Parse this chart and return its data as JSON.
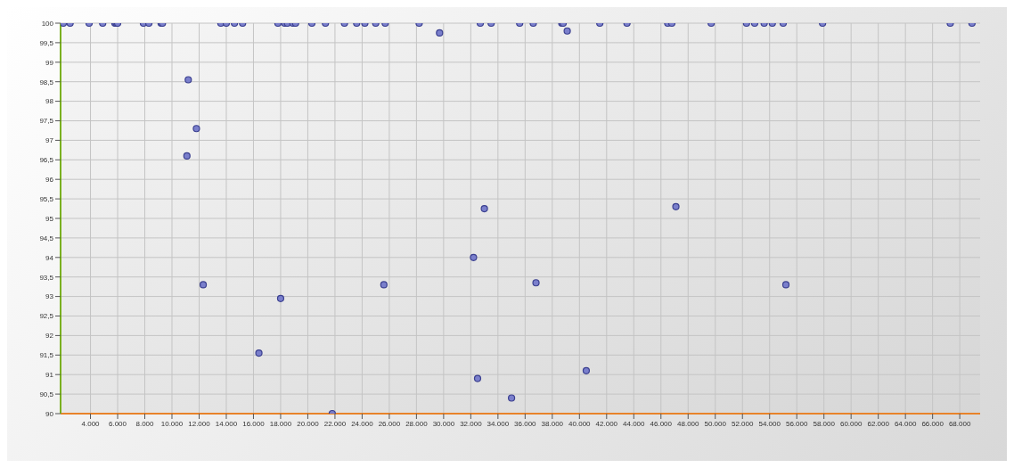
{
  "chart_data": {
    "type": "scatter",
    "color": "#7a7fcc",
    "marker": "circle",
    "grid": true,
    "x": [
      2000,
      2500,
      3900,
      4900,
      5800,
      5900,
      6000,
      7900,
      8300,
      9200,
      9300,
      13600,
      14000,
      14600,
      15200,
      17800,
      18300,
      18500,
      18900,
      19100,
      20300,
      21300,
      22700,
      23600,
      24200,
      25000,
      25700,
      28200,
      32700,
      33500,
      35600,
      36600,
      38700,
      38800,
      41500,
      43500,
      46500,
      46800,
      49700,
      52300,
      52900,
      53600,
      54200,
      55000,
      57900,
      67300,
      68900,
      29700,
      39100,
      11200,
      11800,
      11100,
      12300,
      18000,
      16400,
      21800,
      25600,
      32200,
      32500,
      33000,
      35000,
      36800,
      40500,
      47100,
      55200
    ],
    "values": [
      100,
      100,
      100,
      100,
      100,
      100,
      100,
      100,
      100,
      100,
      100,
      100,
      100,
      100,
      100,
      100,
      100,
      100,
      100,
      100,
      100,
      100,
      100,
      100,
      100,
      100,
      100,
      100,
      100,
      100,
      100,
      100,
      100,
      100,
      100,
      100,
      100,
      100,
      100,
      100,
      100,
      100,
      100,
      100,
      100,
      100,
      100,
      99.75,
      99.8,
      98.55,
      97.3,
      96.6,
      93.3,
      92.95,
      91.55,
      90,
      93.3,
      94.0,
      90.9,
      95.25,
      90.4,
      93.35,
      91.1,
      95.3,
      93.3
    ],
    "xlim": [
      1800,
      69500
    ],
    "ylim": [
      90,
      100
    ],
    "xticks": [
      {
        "value": 4000,
        "label": "4.000"
      },
      {
        "value": 6000,
        "label": "6.000"
      },
      {
        "value": 8000,
        "label": "8.000"
      },
      {
        "value": 10000,
        "label": "10.000"
      },
      {
        "value": 12000,
        "label": "12.000"
      },
      {
        "value": 14000,
        "label": "14.000"
      },
      {
        "value": 16000,
        "label": "16.000"
      },
      {
        "value": 18000,
        "label": "18.000"
      },
      {
        "value": 20000,
        "label": "20.000"
      },
      {
        "value": 22000,
        "label": "22.000"
      },
      {
        "value": 24000,
        "label": "24.000"
      },
      {
        "value": 26000,
        "label": "26.000"
      },
      {
        "value": 28000,
        "label": "28.000"
      },
      {
        "value": 30000,
        "label": "30.000"
      },
      {
        "value": 32000,
        "label": "32.000"
      },
      {
        "value": 34000,
        "label": "34.000"
      },
      {
        "value": 36000,
        "label": "36.000"
      },
      {
        "value": 38000,
        "label": "38.000"
      },
      {
        "value": 40000,
        "label": "40.000"
      },
      {
        "value": 42000,
        "label": "42.000"
      },
      {
        "value": 44000,
        "label": "44.000"
      },
      {
        "value": 46000,
        "label": "46.000"
      },
      {
        "value": 48000,
        "label": "48.000"
      },
      {
        "value": 50000,
        "label": "50.000"
      },
      {
        "value": 52000,
        "label": "52.000"
      },
      {
        "value": 54000,
        "label": "54.000"
      },
      {
        "value": 56000,
        "label": "56.000"
      },
      {
        "value": 58000,
        "label": "58.000"
      },
      {
        "value": 60000,
        "label": "60.000"
      },
      {
        "value": 62000,
        "label": "62.000"
      },
      {
        "value": 64000,
        "label": "64.000"
      },
      {
        "value": 66000,
        "label": "66.000"
      },
      {
        "value": 68000,
        "label": "68.000"
      }
    ],
    "yticks": [
      90,
      {
        "value": 90.5,
        "label": "90,5"
      },
      91,
      {
        "value": 91.5,
        "label": "91,5"
      },
      92,
      {
        "value": 92.5,
        "label": "92,5"
      },
      93,
      {
        "value": 93.5,
        "label": "93,5"
      },
      94,
      {
        "value": 94.5,
        "label": "94,5"
      },
      95,
      {
        "value": 95.5,
        "label": "95,5"
      },
      96,
      {
        "value": 96.5,
        "label": "96,5"
      },
      97,
      {
        "value": 97.5,
        "label": "97,5"
      },
      98,
      {
        "value": 98.5,
        "label": "98,5"
      },
      99,
      {
        "value": 99.5,
        "label": "99,5"
      },
      100
    ]
  }
}
